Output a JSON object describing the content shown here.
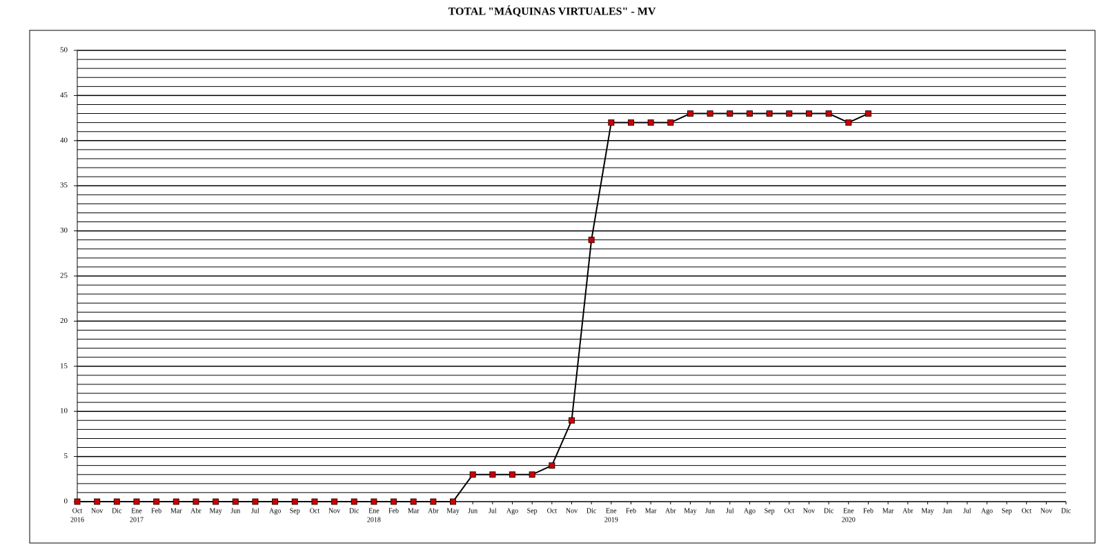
{
  "chart_data": {
    "type": "line",
    "title": "TOTAL \"MÁQUINAS VIRTUALES\" - MV",
    "categories": [
      "Oct",
      "Nov",
      "Dic",
      "Ene",
      "Feb",
      "Mar",
      "Abr",
      "May",
      "Jun",
      "Jul",
      "Ago",
      "Sep",
      "Oct",
      "Nov",
      "Dic",
      "Ene",
      "Feb",
      "Mar",
      "Abr",
      "May",
      "Jun",
      "Jul",
      "Ago",
      "Sep",
      "Oct",
      "Nov",
      "Dic",
      "Ene",
      "Feb",
      "Mar",
      "Abr",
      "May",
      "Jun",
      "Jul",
      "Ago",
      "Sep",
      "Oct",
      "Nov",
      "Dic",
      "Ene",
      "Feb",
      "Mar",
      "Abr",
      "May",
      "Jun",
      "Jul",
      "Ago",
      "Sep",
      "Oct",
      "Nov",
      "Dic"
    ],
    "years": [
      "2016",
      null,
      null,
      "2017",
      null,
      null,
      null,
      null,
      null,
      null,
      null,
      null,
      null,
      null,
      null,
      "2018",
      null,
      null,
      null,
      null,
      null,
      null,
      null,
      null,
      null,
      null,
      null,
      "2019",
      null,
      null,
      null,
      null,
      null,
      null,
      null,
      null,
      null,
      null,
      null,
      "2020",
      null,
      null,
      null,
      null,
      null,
      null,
      null,
      null,
      null,
      null,
      null
    ],
    "series": [
      {
        "color": "#000000",
        "marker_color": "#cc0000",
        "values": [
          0,
          0,
          0,
          0,
          0,
          0,
          0,
          0,
          0,
          0,
          0,
          0,
          0,
          0,
          0,
          0,
          0,
          0,
          0,
          0,
          3,
          3,
          3,
          3,
          4,
          9,
          29,
          42,
          42,
          42,
          42,
          43,
          43,
          43,
          43,
          43,
          43,
          43,
          43,
          42,
          43,
          null,
          null,
          null,
          null,
          null,
          null,
          null,
          null,
          null,
          null
        ]
      }
    ],
    "ylim": [
      0,
      50
    ],
    "yticks": [
      0,
      5,
      10,
      15,
      20,
      25,
      30,
      35,
      40,
      45,
      50
    ],
    "grid": true,
    "minor_grid_step": 1
  }
}
